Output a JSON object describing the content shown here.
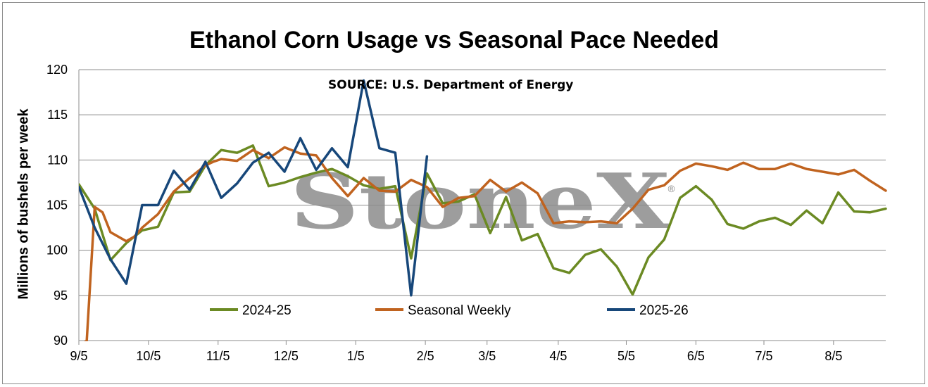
{
  "chart_data": {
    "type": "line",
    "title": "Ethanol Corn Usage vs Seasonal Pace Needed",
    "ylabel": "Millions of bushels per week",
    "source_note": "SOURCE: U.S. Department of Energy",
    "watermark": "StoneX",
    "watermark_mark": "®",
    "ylim": [
      90,
      120
    ],
    "yticks": [
      90,
      95,
      100,
      105,
      110,
      115,
      120
    ],
    "xlim": [
      0,
      51
    ],
    "xticks": [
      {
        "x": 0,
        "label": "9/5"
      },
      {
        "x": 4.4,
        "label": "10/5"
      },
      {
        "x": 8.8,
        "label": "11/5"
      },
      {
        "x": 13.1,
        "label": "12/5"
      },
      {
        "x": 17.5,
        "label": "1/5"
      },
      {
        "x": 21.9,
        "label": "2/5"
      },
      {
        "x": 25.8,
        "label": "3/5"
      },
      {
        "x": 30.3,
        "label": "4/5"
      },
      {
        "x": 34.6,
        "label": "5/5"
      },
      {
        "x": 39.0,
        "label": "6/5"
      },
      {
        "x": 43.3,
        "label": "7/5"
      },
      {
        "x": 47.7,
        "label": "8/5"
      }
    ],
    "grid": true,
    "legend_position": "bottom-inside",
    "series": [
      {
        "name": "2024-25",
        "color": "#6b8a23",
        "x": [
          0,
          1,
          2,
          3,
          4,
          5,
          6,
          7,
          8,
          9,
          10,
          11,
          12,
          13,
          14,
          15,
          16,
          17,
          18,
          19,
          20,
          21,
          22,
          23,
          24,
          25,
          26,
          27,
          28,
          29,
          30,
          31,
          32,
          33,
          34,
          35,
          36,
          37,
          38,
          39,
          40,
          41,
          42,
          43,
          44,
          45,
          46,
          47,
          48,
          49,
          50,
          51
        ],
        "values": [
          107.3,
          104.6,
          98.9,
          100.8,
          102.2,
          102.6,
          106.4,
          106.5,
          109.4,
          111.1,
          110.8,
          111.6,
          107.1,
          107.5,
          108.1,
          108.6,
          109.0,
          108.2,
          107.2,
          106.8,
          107.1,
          99.1,
          108.5,
          105.2,
          105.4,
          106.2,
          101.9,
          105.9,
          101.1,
          101.8,
          98.0,
          97.5,
          99.5,
          100.1,
          98.2,
          95.1,
          99.2,
          101.2,
          105.8,
          107.1,
          105.6,
          102.9,
          102.4,
          103.2,
          103.6,
          102.8,
          104.4,
          103.0,
          106.4,
          104.3,
          104.2,
          104.6
        ]
      },
      {
        "name": "Seasonal Weekly",
        "color": "#c0631f",
        "x": [
          0,
          0.5,
          1,
          1.5,
          2,
          3,
          3.5,
          4,
          5,
          6,
          7,
          8,
          8.5,
          9,
          10,
          11,
          12,
          13,
          14,
          15,
          16,
          17,
          18,
          19,
          20,
          21,
          22,
          23,
          24,
          25,
          26,
          27,
          28,
          29,
          30,
          31,
          32,
          33,
          34,
          35,
          36,
          37,
          38,
          39,
          40,
          41,
          42,
          43,
          44,
          45,
          46,
          47,
          48,
          49,
          50,
          51
        ],
        "values": [
          86,
          90,
          104.8,
          104.2,
          102.0,
          101.0,
          101.5,
          102.5,
          104.0,
          106.5,
          108.0,
          109.4,
          109.8,
          110.1,
          109.9,
          111.1,
          110.2,
          111.4,
          110.7,
          110.5,
          108.0,
          106.0,
          108.0,
          106.6,
          106.5,
          107.8,
          107.0,
          104.8,
          105.8,
          106.0,
          107.8,
          106.5,
          107.5,
          106.3,
          103.0,
          103.2,
          103.1,
          103.2,
          103.0,
          104.6,
          106.7,
          107.2,
          108.8,
          109.6,
          109.3,
          108.9,
          109.7,
          109.0,
          109.0,
          109.6,
          109.0,
          108.7,
          108.4,
          108.9,
          107.7,
          106.6
        ]
      },
      {
        "name": "2025-26",
        "color": "#17477a",
        "x": [
          0,
          1,
          2,
          3,
          4,
          5,
          6,
          7,
          8,
          9,
          10,
          11,
          12,
          13,
          14,
          15,
          16,
          17,
          18,
          19,
          20,
          21,
          22
        ],
        "values": [
          107.0,
          102.5,
          99.0,
          96.3,
          105.0,
          105.0,
          108.8,
          106.7,
          109.8,
          105.8,
          107.4,
          109.7,
          110.8,
          108.7,
          112.4,
          108.9,
          111.3,
          109.2,
          118.8,
          111.3,
          110.8,
          95.0,
          110.4
        ]
      }
    ]
  }
}
